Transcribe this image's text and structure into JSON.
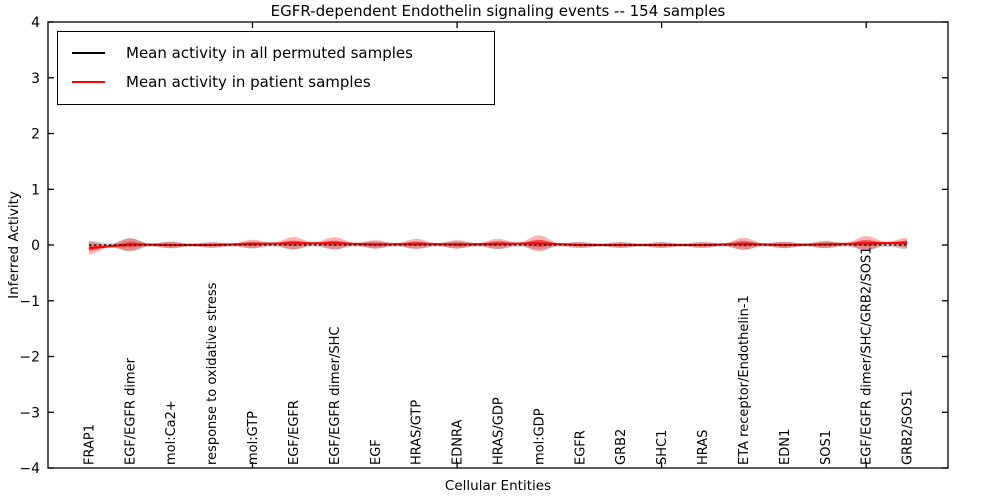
{
  "figure": {
    "title": "EGFR-dependent Endothelin signaling events -- 154 samples",
    "xlabel": "Cellular Entities",
    "ylabel": "Inferred Activity"
  },
  "legend": {
    "entries": [
      {
        "label": "Mean activity in all permuted samples",
        "color": "#000000"
      },
      {
        "label": "Mean activity in patient samples",
        "color": "#ff0000"
      }
    ]
  },
  "chart_data": {
    "type": "area",
    "subtype": "violin-band-along-categories",
    "title": "EGFR-dependent Endothelin signaling events -- 154 samples",
    "xlabel": "Cellular Entities",
    "ylabel": "Inferred Activity",
    "ylim": [
      -4,
      4
    ],
    "yticks": [
      -4,
      -3,
      -2,
      -1,
      0,
      1,
      2,
      3,
      4
    ],
    "xticks_unlabeled": [
      5,
      10,
      15,
      20
    ],
    "xlim_index": [
      0,
      22
    ],
    "grid": false,
    "legend_position": "upper-left",
    "categories": [
      "FRAP1",
      "EGF/EGFR dimer",
      "mol:Ca2+",
      "response to oxidative stress",
      "mol:GTP",
      "EGF/EGFR",
      "EGF/EGFR dimer/SHC",
      "EGF",
      "HRAS/GTP",
      "EDNRA",
      "HRAS/GDP",
      "mol:GDP",
      "EGFR",
      "GRB2",
      "SHC1",
      "HRAS",
      "ETA receptor/Endothelin-1",
      "EDN1",
      "SOS1",
      "EGF/EGFR dimer/SHC/GRB2/SOS1",
      "GRB2/SOS1"
    ],
    "series": [
      {
        "name": "Mean activity in all permuted samples",
        "color": "#000000",
        "line_style": "dashed",
        "band_color": "#999999",
        "means": [
          0,
          0,
          0,
          0,
          0,
          0,
          0,
          0,
          0,
          0,
          0,
          0,
          0,
          0,
          0,
          0,
          0,
          0,
          0,
          0,
          0
        ],
        "spread": [
          0.05,
          0.09,
          0.03,
          0.02,
          0.035,
          0.05,
          0.05,
          0.035,
          0.04,
          0.035,
          0.045,
          0.06,
          0.025,
          0.025,
          0.025,
          0.025,
          0.05,
          0.03,
          0.03,
          0.06,
          0.05
        ]
      },
      {
        "name": "Mean activity in patient samples",
        "color": "#ff0000",
        "line_style": "solid",
        "band_color": "#ff0000",
        "means": [
          -0.06,
          0.01,
          0.0,
          0.0,
          0.02,
          0.03,
          0.03,
          0.01,
          0.02,
          0.01,
          0.02,
          0.03,
          0.0,
          0.0,
          0.0,
          0.0,
          0.02,
          0.0,
          0.01,
          0.03,
          0.04
        ],
        "spread": [
          0.09,
          0.09,
          0.035,
          0.027,
          0.055,
          0.09,
          0.09,
          0.055,
          0.07,
          0.055,
          0.07,
          0.125,
          0.027,
          0.027,
          0.027,
          0.027,
          0.09,
          0.035,
          0.045,
          0.11,
          0.07
        ]
      }
    ]
  }
}
